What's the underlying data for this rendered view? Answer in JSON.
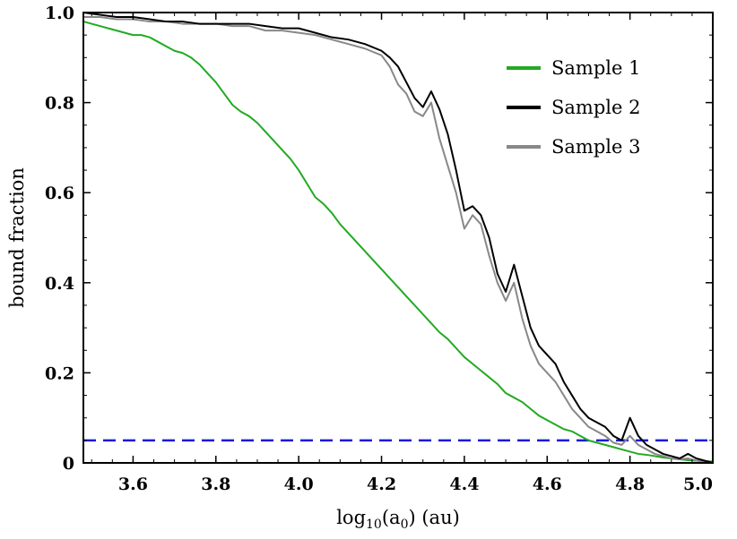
{
  "chart_data": {
    "type": "line",
    "xlabel": "log10(a0) (au)",
    "xlabel_parts": {
      "base": "log",
      "sub1": "10",
      "mid": "(a",
      "sub2": "0",
      "tail": ") (au)"
    },
    "ylabel": "bound fraction",
    "xlim": [
      3.48,
      5.0
    ],
    "ylim": [
      0.0,
      1.0
    ],
    "x_ticks": [
      3.6,
      3.8,
      4.0,
      4.2,
      4.4,
      4.6,
      4.8,
      5.0
    ],
    "x_tick_labels": [
      "3.6",
      "3.8",
      "4.0",
      "4.2",
      "4.4",
      "4.6",
      "4.8",
      "5.0"
    ],
    "y_ticks": [
      0.0,
      0.2,
      0.4,
      0.6,
      0.8,
      1.0
    ],
    "y_tick_labels": [
      "0",
      "0.2",
      "0.4",
      "0.6",
      "0.8",
      "1.0"
    ],
    "legend_position": "top-right",
    "reference_line": {
      "y": 0.05,
      "style": "dashed",
      "color": "#1a1adc"
    },
    "series": [
      {
        "name": "Sample 1",
        "color": "#22aa22",
        "x": [
          3.48,
          3.5,
          3.52,
          3.54,
          3.56,
          3.58,
          3.6,
          3.62,
          3.64,
          3.66,
          3.68,
          3.7,
          3.72,
          3.74,
          3.76,
          3.78,
          3.8,
          3.82,
          3.84,
          3.86,
          3.88,
          3.9,
          3.92,
          3.94,
          3.96,
          3.98,
          4.0,
          4.02,
          4.04,
          4.06,
          4.08,
          4.1,
          4.12,
          4.14,
          4.16,
          4.18,
          4.2,
          4.22,
          4.24,
          4.26,
          4.28,
          4.3,
          4.32,
          4.34,
          4.36,
          4.38,
          4.4,
          4.42,
          4.44,
          4.46,
          4.48,
          4.5,
          4.52,
          4.54,
          4.56,
          4.58,
          4.6,
          4.62,
          4.64,
          4.66,
          4.68,
          4.7,
          4.72,
          4.74,
          4.76,
          4.78,
          4.8,
          4.82,
          4.84,
          4.86,
          4.88,
          4.9,
          4.92,
          4.94,
          4.96,
          4.98,
          5.0
        ],
        "values": [
          0.98,
          0.975,
          0.97,
          0.965,
          0.96,
          0.955,
          0.95,
          0.95,
          0.945,
          0.935,
          0.925,
          0.915,
          0.91,
          0.9,
          0.885,
          0.865,
          0.845,
          0.82,
          0.795,
          0.78,
          0.77,
          0.755,
          0.735,
          0.715,
          0.695,
          0.675,
          0.65,
          0.62,
          0.59,
          0.575,
          0.555,
          0.53,
          0.51,
          0.49,
          0.47,
          0.45,
          0.43,
          0.41,
          0.39,
          0.37,
          0.35,
          0.33,
          0.31,
          0.29,
          0.275,
          0.255,
          0.235,
          0.22,
          0.205,
          0.19,
          0.175,
          0.155,
          0.145,
          0.135,
          0.12,
          0.105,
          0.095,
          0.085,
          0.075,
          0.07,
          0.06,
          0.05,
          0.045,
          0.04,
          0.035,
          0.03,
          0.025,
          0.02,
          0.018,
          0.015,
          0.012,
          0.01,
          0.008,
          0.006,
          0.005,
          0.004,
          0.003
        ]
      },
      {
        "name": "Sample 2",
        "color": "#000000",
        "x": [
          3.48,
          3.52,
          3.56,
          3.6,
          3.64,
          3.68,
          3.72,
          3.76,
          3.8,
          3.84,
          3.88,
          3.92,
          3.96,
          4.0,
          4.04,
          4.08,
          4.12,
          4.16,
          4.2,
          4.22,
          4.24,
          4.26,
          4.28,
          4.3,
          4.32,
          4.34,
          4.36,
          4.38,
          4.4,
          4.42,
          4.44,
          4.46,
          4.48,
          4.5,
          4.52,
          4.54,
          4.56,
          4.58,
          4.6,
          4.62,
          4.64,
          4.66,
          4.68,
          4.7,
          4.72,
          4.74,
          4.76,
          4.78,
          4.8,
          4.82,
          4.84,
          4.86,
          4.88,
          4.9,
          4.92,
          4.94,
          4.96,
          4.98,
          5.0
        ],
        "values": [
          1.0,
          0.995,
          0.99,
          0.99,
          0.985,
          0.98,
          0.98,
          0.975,
          0.975,
          0.975,
          0.975,
          0.97,
          0.965,
          0.965,
          0.955,
          0.945,
          0.94,
          0.93,
          0.915,
          0.9,
          0.88,
          0.845,
          0.81,
          0.79,
          0.825,
          0.785,
          0.73,
          0.65,
          0.56,
          0.57,
          0.55,
          0.5,
          0.42,
          0.38,
          0.44,
          0.37,
          0.3,
          0.26,
          0.24,
          0.22,
          0.18,
          0.15,
          0.12,
          0.1,
          0.09,
          0.08,
          0.06,
          0.05,
          0.1,
          0.06,
          0.04,
          0.03,
          0.02,
          0.015,
          0.01,
          0.02,
          0.01,
          0.005,
          0.0
        ]
      },
      {
        "name": "Sample 3",
        "color": "#888888",
        "x": [
          3.48,
          3.52,
          3.56,
          3.6,
          3.64,
          3.68,
          3.72,
          3.76,
          3.8,
          3.84,
          3.88,
          3.92,
          3.96,
          4.0,
          4.04,
          4.08,
          4.12,
          4.16,
          4.2,
          4.22,
          4.24,
          4.26,
          4.28,
          4.3,
          4.32,
          4.34,
          4.36,
          4.38,
          4.4,
          4.42,
          4.44,
          4.46,
          4.48,
          4.5,
          4.52,
          4.54,
          4.56,
          4.58,
          4.6,
          4.62,
          4.64,
          4.66,
          4.68,
          4.7,
          4.72,
          4.74,
          4.76,
          4.78,
          4.8,
          4.82,
          4.84,
          4.86,
          4.88,
          4.9,
          4.92,
          4.94,
          4.96,
          4.98,
          5.0
        ],
        "values": [
          0.99,
          0.99,
          0.985,
          0.985,
          0.98,
          0.98,
          0.975,
          0.975,
          0.975,
          0.97,
          0.97,
          0.96,
          0.96,
          0.955,
          0.95,
          0.94,
          0.93,
          0.92,
          0.905,
          0.88,
          0.84,
          0.82,
          0.78,
          0.77,
          0.8,
          0.72,
          0.66,
          0.6,
          0.52,
          0.55,
          0.53,
          0.46,
          0.4,
          0.36,
          0.4,
          0.32,
          0.26,
          0.22,
          0.2,
          0.18,
          0.15,
          0.12,
          0.1,
          0.08,
          0.07,
          0.06,
          0.045,
          0.04,
          0.06,
          0.04,
          0.03,
          0.02,
          0.015,
          0.01,
          0.008,
          0.01,
          0.005,
          0.003,
          0.0
        ]
      }
    ]
  }
}
